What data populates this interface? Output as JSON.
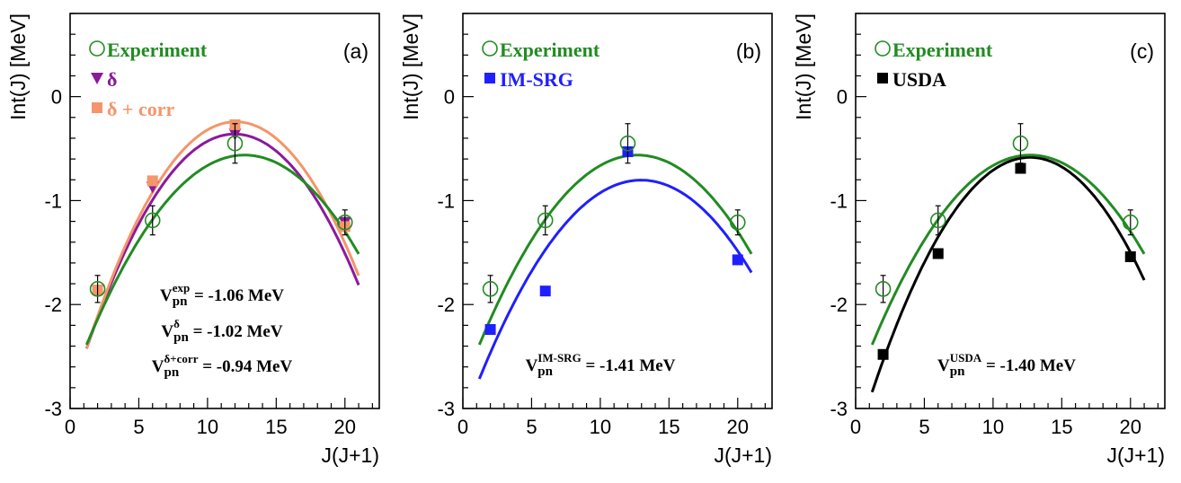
{
  "colors": {
    "experiment": "#228b22",
    "delta": "#8b1a9b",
    "delta_corr": "#f4956a",
    "imsrg": "#1f1fff",
    "usda": "#000000"
  },
  "chart_data": [
    {
      "type": "scatter",
      "panel_label": "(a)",
      "xlabel": "J(J+1)",
      "ylabel": "Int(J) [MeV]",
      "xlim": [
        0,
        22.5
      ],
      "ylim": [
        -3,
        0.8
      ],
      "xticks": [
        0,
        5,
        10,
        15,
        20
      ],
      "xtick_labels": [
        "0",
        "5",
        "10",
        "15",
        "20"
      ],
      "yticks": [
        -3,
        -2,
        -1,
        0
      ],
      "ytick_labels": [
        "-3",
        "-2",
        "-1",
        "0"
      ],
      "x": [
        2,
        6,
        12,
        20
      ],
      "series": [
        {
          "name": "Experiment",
          "key": "experiment",
          "marker": "open-circle",
          "values": [
            -1.85,
            -1.19,
            -0.45,
            -1.21
          ],
          "errors": [
            0.13,
            0.14,
            0.19,
            0.12
          ],
          "fit": [
            -0.0138,
            0.3505,
            -2.7878
          ],
          "fit_range": [
            1.2,
            21
          ]
        },
        {
          "name": "δ",
          "key": "delta",
          "marker": "down-triangle",
          "values": [
            -1.86,
            -0.87,
            -0.36,
            -1.21
          ],
          "fit": [
            -0.0178,
            0.426,
            -2.909
          ],
          "fit_range": [
            1.2,
            21
          ]
        },
        {
          "name": "δ + corr",
          "key": "delta_corr",
          "marker": "square",
          "values": [
            -1.86,
            -0.81,
            -0.27,
            -1.25
          ],
          "fit": [
            -0.0185,
            0.446,
            -2.93
          ],
          "fit_range": [
            1.2,
            21
          ]
        }
      ],
      "annotations": [
        {
          "base": "V",
          "sub": "pn",
          "sup": "exp",
          "value": " = -1.06 MeV"
        },
        {
          "base": "V",
          "sub": "pn",
          "sup": "δ",
          "value": " = -1.02 MeV"
        },
        {
          "base": "V",
          "sub": "pn",
          "sup": "δ+corr",
          "value": " = -0.94 MeV"
        }
      ]
    },
    {
      "type": "scatter",
      "panel_label": "(b)",
      "xlabel": "J(J+1)",
      "ylabel": "Int(J) [MeV]",
      "xlim": [
        0,
        22.5
      ],
      "ylim": [
        -3,
        0.8
      ],
      "xticks": [
        0,
        5,
        10,
        15,
        20
      ],
      "xtick_labels": [
        "0",
        "5",
        "10",
        "15",
        "20"
      ],
      "yticks": [
        -3,
        -2,
        -1,
        0
      ],
      "ytick_labels": [
        "-3",
        "-2",
        "-1",
        "0"
      ],
      "x": [
        2,
        6,
        12,
        20
      ],
      "series": [
        {
          "name": "Experiment",
          "key": "experiment",
          "marker": "open-circle",
          "values": [
            -1.85,
            -1.19,
            -0.45,
            -1.21
          ],
          "errors": [
            0.13,
            0.14,
            0.19,
            0.12
          ],
          "fit": [
            -0.0138,
            0.3505,
            -2.7878
          ],
          "fit_range": [
            1.2,
            21
          ]
        },
        {
          "name": "IM-SRG",
          "key": "imsrg",
          "marker": "square",
          "values": [
            -2.24,
            -1.87,
            -0.53,
            -1.57
          ],
          "fit": [
            -0.0138,
            0.358,
            -3.125
          ],
          "fit_range": [
            1.2,
            21
          ]
        }
      ],
      "annotations": [
        {
          "base": "V",
          "sub": "pn",
          "sup": "IM-SRG",
          "value": " = -1.41 MeV"
        }
      ]
    },
    {
      "type": "scatter",
      "panel_label": "(c)",
      "xlabel": "J(J+1)",
      "ylabel": "Int(J) [MeV]",
      "xlim": [
        0,
        22.5
      ],
      "ylim": [
        -3,
        0.8
      ],
      "xticks": [
        0,
        5,
        10,
        15,
        20
      ],
      "xtick_labels": [
        "0",
        "5",
        "10",
        "15",
        "20"
      ],
      "yticks": [
        -3,
        -2,
        -1,
        0
      ],
      "ytick_labels": [
        "-3",
        "-2",
        "-1",
        "0"
      ],
      "x": [
        2,
        6,
        12,
        20
      ],
      "series": [
        {
          "name": "Experiment",
          "key": "experiment",
          "marker": "open-circle",
          "values": [
            -1.85,
            -1.19,
            -0.45,
            -1.21
          ],
          "errors": [
            0.13,
            0.14,
            0.19,
            0.12
          ],
          "fit": [
            -0.0138,
            0.3505,
            -2.7878
          ],
          "fit_range": [
            1.2,
            21
          ]
        },
        {
          "name": "USDA",
          "key": "usda",
          "marker": "square",
          "values": [
            -2.48,
            -1.51,
            -0.69,
            -1.54
          ],
          "fit": [
            -0.0171,
            0.434,
            -3.338
          ],
          "fit_range": [
            1.2,
            21
          ]
        }
      ],
      "annotations": [
        {
          "base": "V",
          "sub": "pn",
          "sup": "USDA",
          "value": " = -1.40 MeV"
        }
      ]
    }
  ]
}
